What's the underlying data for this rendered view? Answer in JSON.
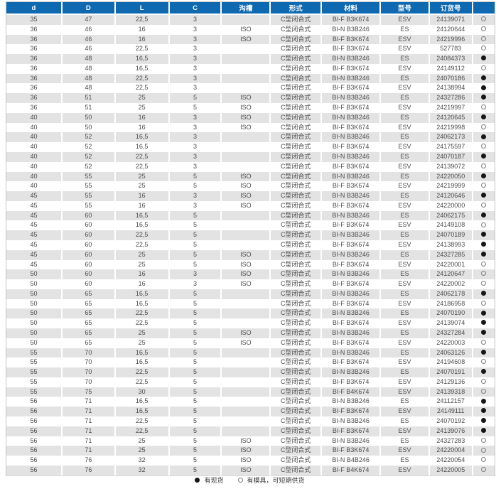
{
  "table": {
    "columns": [
      {
        "key": "d",
        "label": "d"
      },
      {
        "key": "D",
        "label": "D"
      },
      {
        "key": "L",
        "label": "L"
      },
      {
        "key": "C",
        "label": "C"
      },
      {
        "key": "groove",
        "label": "沟槽"
      },
      {
        "key": "form",
        "label": "形式"
      },
      {
        "key": "material",
        "label": "材料"
      },
      {
        "key": "model",
        "label": "型号"
      },
      {
        "key": "order_no",
        "label": "订货号"
      },
      {
        "key": "availability",
        "label": ""
      }
    ],
    "rows": [
      [
        "35",
        "47",
        "22,5",
        "3",
        "",
        "C型闭合式",
        "BI-F B3K674",
        "ESV",
        "24139071",
        "open"
      ],
      [
        "36",
        "46",
        "16",
        "3",
        "ISO",
        "C型闭合式",
        "BI-N B3B246",
        "ES",
        "24120644",
        "open"
      ],
      [
        "36",
        "46",
        "16",
        "3",
        "ISO",
        "C型闭合式",
        "BI-F B3K674",
        "ESV",
        "24219996",
        "open"
      ],
      [
        "36",
        "46",
        "22,5",
        "3",
        "",
        "C型闭合式",
        "BI-F B3K674",
        "ESV",
        "527783",
        "open"
      ],
      [
        "36",
        "48",
        "16,5",
        "3",
        "",
        "C型闭合式",
        "BI-N B3B246",
        "ES",
        "24084373",
        "filled"
      ],
      [
        "36",
        "48",
        "16,5",
        "3",
        "",
        "C型闭合式",
        "BI-F B3K674",
        "ESV",
        "24149112",
        "open"
      ],
      [
        "36",
        "48",
        "22,5",
        "3",
        "",
        "C型闭合式",
        "BI-N B3B246",
        "ES",
        "24070186",
        "filled"
      ],
      [
        "36",
        "48",
        "22,5",
        "3",
        "",
        "C型闭合式",
        "BI-F B3K674",
        "ESV",
        "24138994",
        "filled"
      ],
      [
        "36",
        "51",
        "25",
        "5",
        "ISO",
        "C型闭合式",
        "BI-N B3B246",
        "ES",
        "24327286",
        "filled"
      ],
      [
        "36",
        "51",
        "25",
        "5",
        "ISO",
        "C型闭合式",
        "BI-F B3K674",
        "ESV",
        "24219997",
        "open"
      ],
      [
        "40",
        "50",
        "16",
        "3",
        "ISO",
        "C型闭合式",
        "BI-N B3B246",
        "ES",
        "24120645",
        "filled"
      ],
      [
        "40",
        "50",
        "16",
        "3",
        "ISO",
        "C型闭合式",
        "BI-F B3K674",
        "ESV",
        "24219998",
        "open"
      ],
      [
        "40",
        "52",
        "16,5",
        "3",
        "",
        "C型闭合式",
        "BI-N B3B246",
        "ES",
        "24062173",
        "filled"
      ],
      [
        "40",
        "52",
        "16,5",
        "3",
        "",
        "C型闭合式",
        "BI-F B3K674",
        "ESV",
        "24175597",
        "open"
      ],
      [
        "40",
        "52",
        "22,5",
        "3",
        "",
        "C型闭合式",
        "BI-N B3B246",
        "ES",
        "24070187",
        "filled"
      ],
      [
        "40",
        "52",
        "22,5",
        "3",
        "",
        "C型闭合式",
        "BI-F B3K674",
        "ESV",
        "24139072",
        "open"
      ],
      [
        "40",
        "55",
        "25",
        "5",
        "ISO",
        "C型闭合式",
        "BI-N B3B246",
        "ES",
        "24220050",
        "filled"
      ],
      [
        "40",
        "55",
        "25",
        "5",
        "ISO",
        "C型闭合式",
        "BI-F B3K674",
        "ESV",
        "24219999",
        "open"
      ],
      [
        "45",
        "55",
        "16",
        "3",
        "ISO",
        "C型闭合式",
        "BI-N B3B246",
        "ES",
        "24120646",
        "filled"
      ],
      [
        "45",
        "55",
        "16",
        "3",
        "ISO",
        "C型闭合式",
        "BI-F B3K674",
        "ESV",
        "24220000",
        "open"
      ],
      [
        "45",
        "60",
        "16,5",
        "5",
        "",
        "C型闭合式",
        "BI-N B3B246",
        "ES",
        "24062175",
        "filled"
      ],
      [
        "45",
        "60",
        "16,5",
        "5",
        "",
        "C型闭合式",
        "BI-F B3K674",
        "ESV",
        "24149108",
        "open"
      ],
      [
        "45",
        "60",
        "22,5",
        "5",
        "",
        "C型闭合式",
        "BI-N B3B246",
        "ES",
        "24070189",
        "filled"
      ],
      [
        "45",
        "60",
        "22,5",
        "5",
        "",
        "C型闭合式",
        "BI-F B3K674",
        "ESV",
        "24138993",
        "filled"
      ],
      [
        "45",
        "60",
        "25",
        "5",
        "ISO",
        "C型闭合式",
        "BI-N B3B246",
        "ES",
        "24327285",
        "filled"
      ],
      [
        "45",
        "60",
        "25",
        "5",
        "ISO",
        "C型闭合式",
        "BI-F B3K674",
        "ESV",
        "24220001",
        "open"
      ],
      [
        "50",
        "60",
        "16",
        "3",
        "ISO",
        "C型闭合式",
        "BI-N B3B246",
        "ES",
        "24120647",
        "open"
      ],
      [
        "50",
        "60",
        "16",
        "3",
        "ISO",
        "C型闭合式",
        "BI-F B3K674",
        "ESV",
        "24220002",
        "open"
      ],
      [
        "50",
        "65",
        "16,5",
        "5",
        "",
        "C型闭合式",
        "BI-N B3B246",
        "ES",
        "24062178",
        "filled"
      ],
      [
        "50",
        "65",
        "16,5",
        "5",
        "",
        "C型闭合式",
        "BI-F B3K674",
        "ESV",
        "24186958",
        "open"
      ],
      [
        "50",
        "65",
        "22,5",
        "5",
        "",
        "C型闭合式",
        "BI-N B3B246",
        "ES",
        "24070190",
        "filled"
      ],
      [
        "50",
        "65",
        "22,5",
        "5",
        "",
        "C型闭合式",
        "BI-F B3K674",
        "ESV",
        "24139074",
        "filled"
      ],
      [
        "50",
        "65",
        "25",
        "5",
        "ISO",
        "C型闭合式",
        "BI-N B3B246",
        "ES",
        "24327284",
        "filled"
      ],
      [
        "50",
        "65",
        "25",
        "5",
        "ISO",
        "C型闭合式",
        "BI-F B3K674",
        "ESV",
        "24220003",
        "open"
      ],
      [
        "55",
        "70",
        "16,5",
        "5",
        "",
        "C型闭合式",
        "BI-N B3B246",
        "ES",
        "24063126",
        "filled"
      ],
      [
        "55",
        "70",
        "16,5",
        "5",
        "",
        "C型闭合式",
        "BI-F B3K674",
        "ESV",
        "24194608",
        "open"
      ],
      [
        "55",
        "70",
        "22,5",
        "5",
        "",
        "C型闭合式",
        "BI-N B3B246",
        "ES",
        "24070191",
        "filled"
      ],
      [
        "55",
        "70",
        "22,5",
        "5",
        "",
        "C型闭合式",
        "BI-F B3K674",
        "ESV",
        "24129136",
        "open"
      ],
      [
        "55",
        "75",
        "30",
        "5",
        "",
        "C型闭合式",
        "BI-F B4K674",
        "ESV",
        "24139318",
        "open"
      ],
      [
        "56",
        "71",
        "16,5",
        "5",
        "",
        "C型闭合式",
        "BI-N B3B246",
        "ES",
        "24112157",
        "filled"
      ],
      [
        "56",
        "71",
        "16,5",
        "5",
        "",
        "C型闭合式",
        "BI-F B3K674",
        "ESV",
        "24149111",
        "filled"
      ],
      [
        "56",
        "71",
        "22,5",
        "5",
        "",
        "C型闭合式",
        "BI-N B3B246",
        "ES",
        "24070192",
        "filled"
      ],
      [
        "56",
        "71",
        "22,5",
        "5",
        "",
        "C型闭合式",
        "BI-F B3K674",
        "ESV",
        "24139076",
        "filled"
      ],
      [
        "56",
        "71",
        "25",
        "5",
        "ISO",
        "C型闭合式",
        "BI-N B3B246",
        "ES",
        "24327283",
        "open"
      ],
      [
        "56",
        "71",
        "25",
        "5",
        "ISO",
        "C型闭合式",
        "BI-F B3K674",
        "ESV",
        "24220004",
        "open"
      ],
      [
        "56",
        "76",
        "32",
        "5",
        "ISO",
        "C型闭合式",
        "BI-N B4B246",
        "ES",
        "24220054",
        "open"
      ],
      [
        "56",
        "76",
        "32",
        "5",
        "ISO",
        "C型闭合式",
        "BI-F B4K674",
        "ESV",
        "24220005",
        "open"
      ]
    ]
  },
  "legend": {
    "in_stock_symbol": "●",
    "in_stock_label": "有现货",
    "mold_symbol": "○",
    "mold_label": "有模具，可短期供货"
  },
  "colors": {
    "header_bg": "#0e69b1",
    "header_text": "#ffffff",
    "row_band": "#e3e3e3",
    "row_text": "#4d4d4d",
    "filled_circle": "#161616",
    "open_circle_stroke": "#7d7d7d"
  }
}
